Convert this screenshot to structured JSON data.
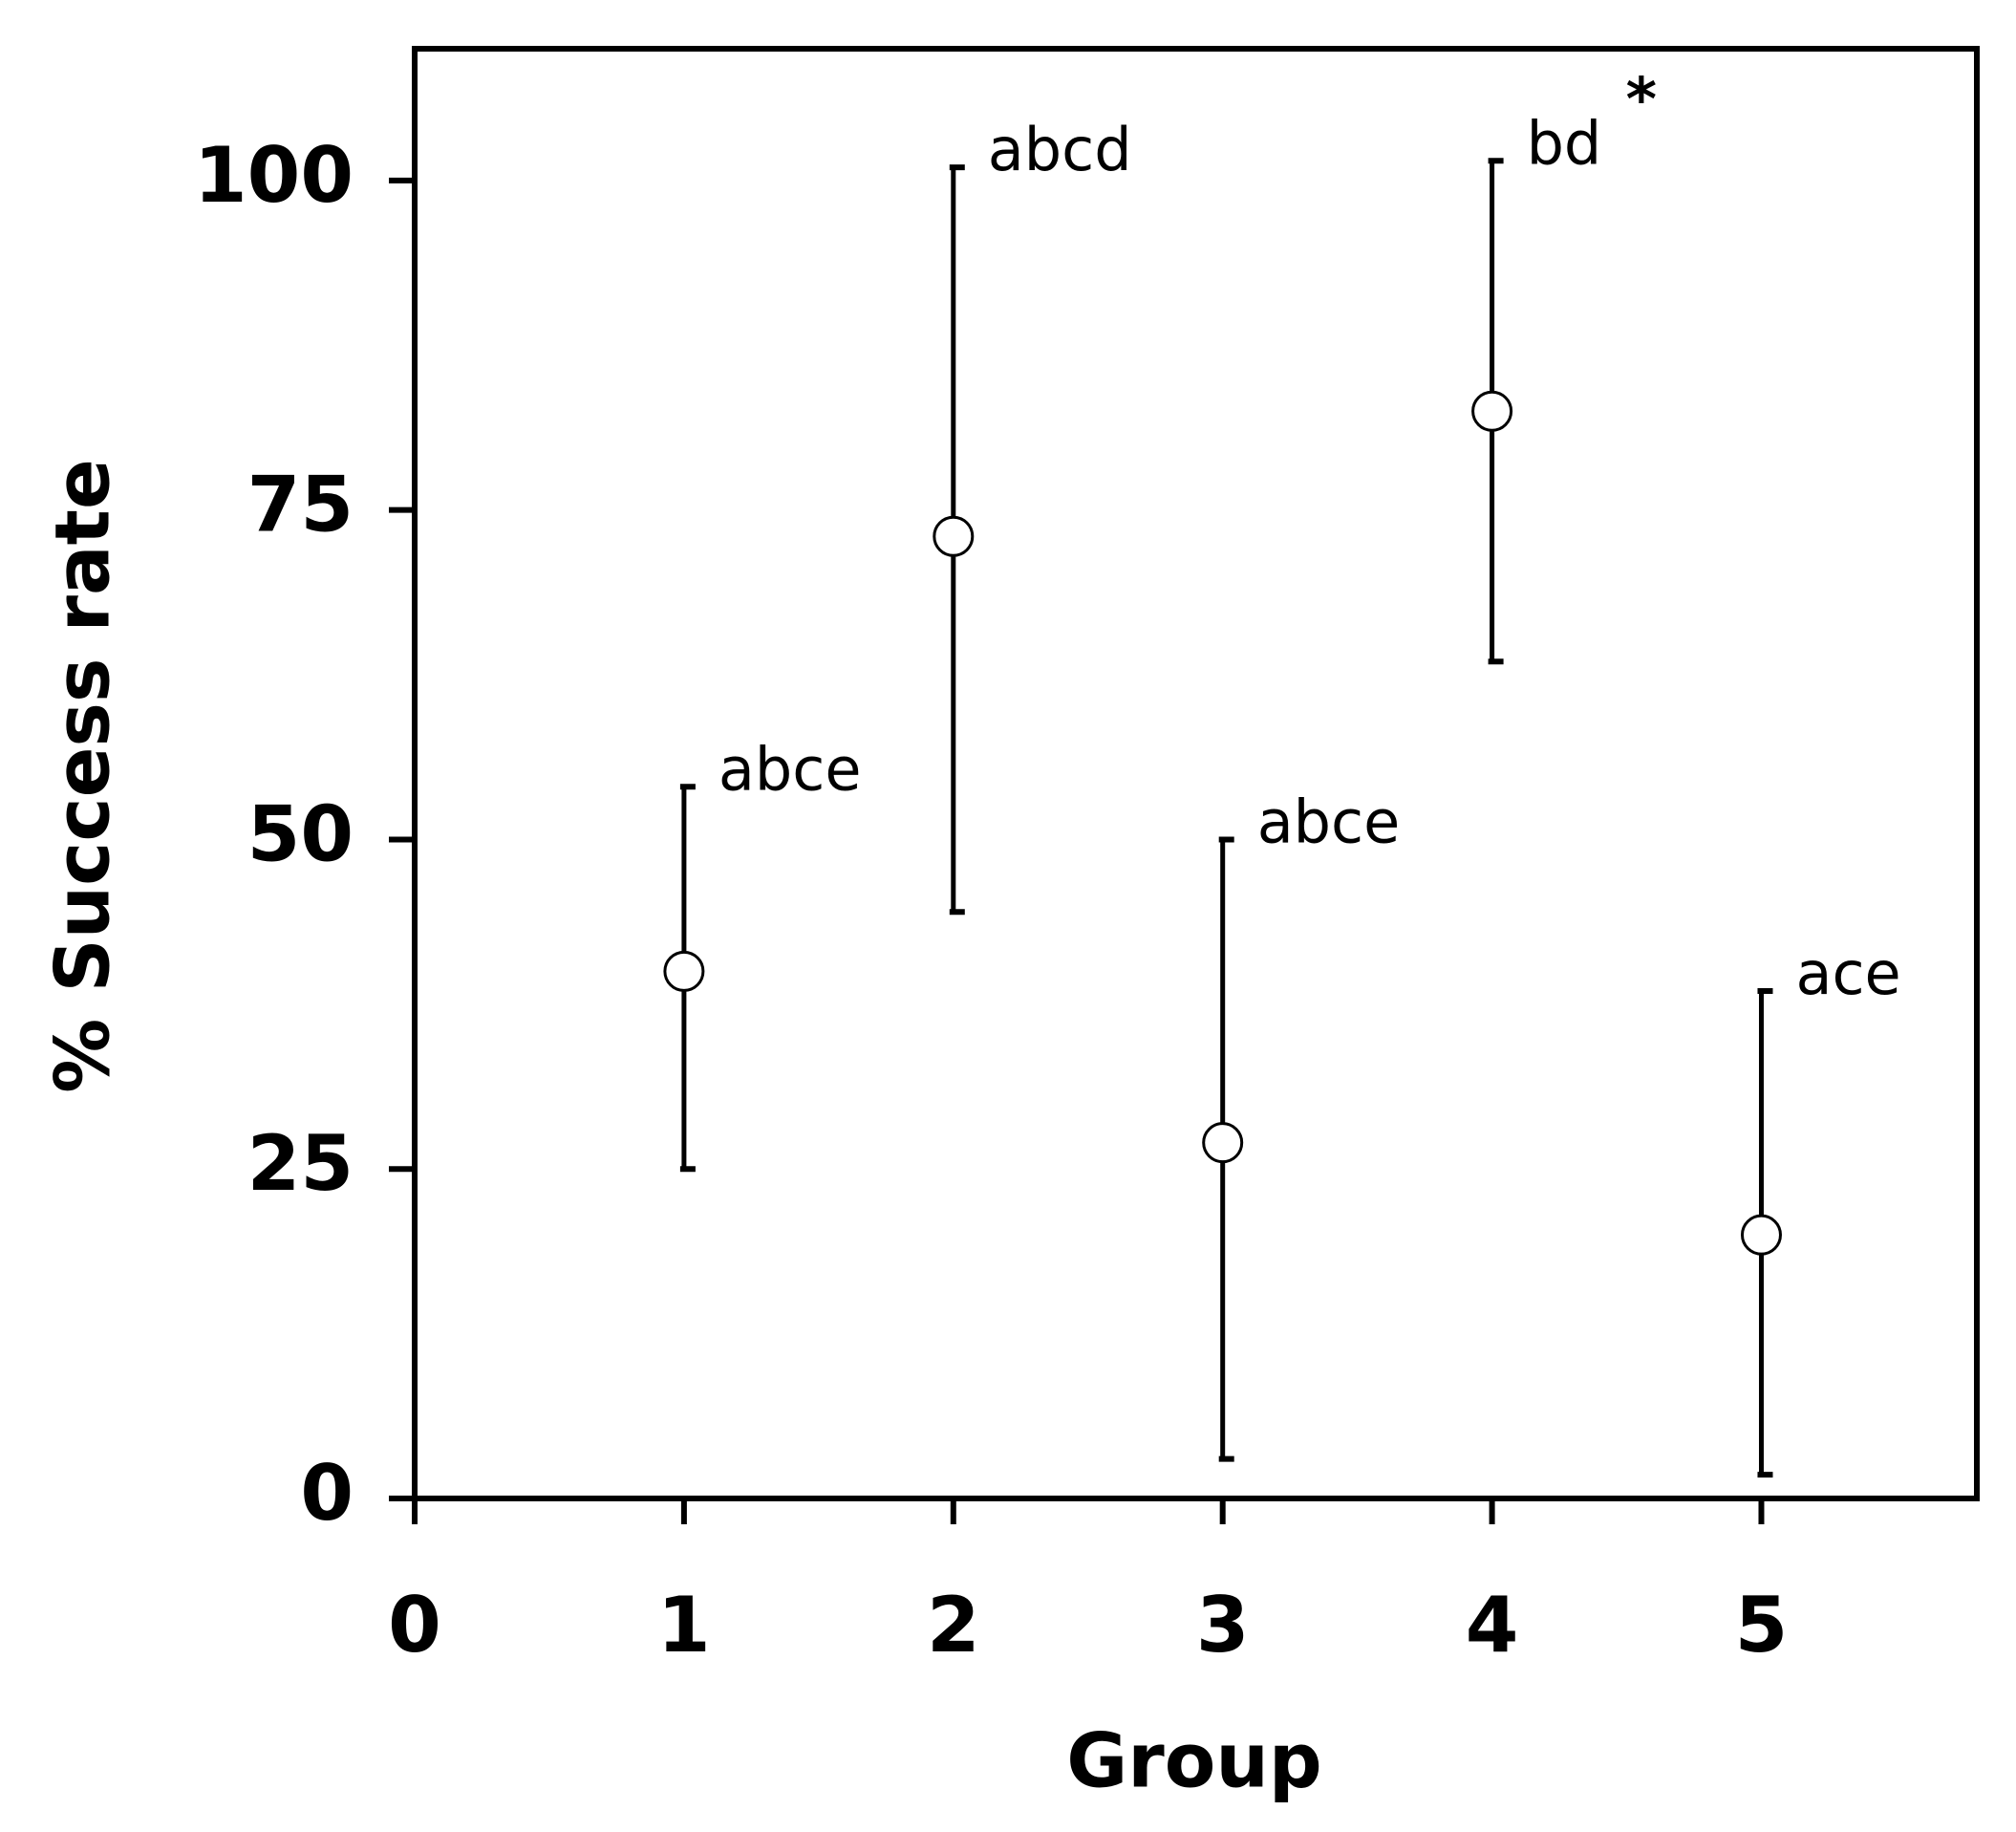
{
  "chart_data": {
    "type": "scatter",
    "x_label": "Group",
    "y_label": "% Success rate",
    "x": [
      1,
      2,
      3,
      4,
      5
    ],
    "values": [
      40,
      73,
      27,
      82.5,
      20
    ],
    "error_low": [
      25,
      44.5,
      3,
      63.5,
      1.8
    ],
    "error_high": [
      54,
      101,
      50,
      101.5,
      38.5
    ],
    "annotations": [
      "abce",
      "abcd",
      "abce",
      "bd",
      "ace"
    ],
    "significance": {
      "x": 4,
      "text": "*"
    },
    "xlim": [
      0,
      5.8
    ],
    "xticks": [
      0,
      1,
      2,
      3,
      4,
      5
    ],
    "ylim": [
      0,
      110
    ],
    "yticks": [
      0,
      25,
      50,
      75,
      100
    ],
    "color": "#000000",
    "marker_fill": "#ffffff"
  }
}
